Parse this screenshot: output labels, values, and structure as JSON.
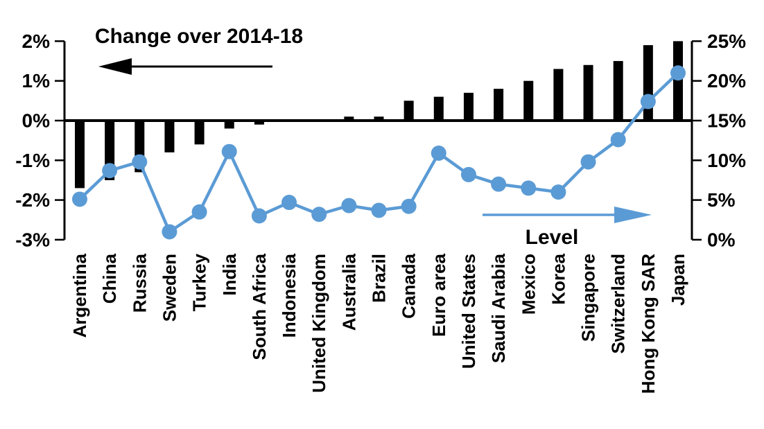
{
  "chart_data": {
    "type": "combo-bar-line",
    "categories": [
      "Argentina",
      "China",
      "Russia",
      "Sweden",
      "Turkey",
      "India",
      "South Africa",
      "Indonesia",
      "United Kingdom",
      "Australia",
      "Brazil",
      "Canada",
      "Euro area",
      "United States",
      "Saudi Arabia",
      "Mexico",
      "Korea",
      "Singapore",
      "Switzerland",
      "Hong Kong SAR",
      "Japan"
    ],
    "series": [
      {
        "name": "Change over 2014-18",
        "type": "bar",
        "axis": "left",
        "color": "#000000",
        "values": [
          -1.7,
          -1.5,
          -1.3,
          -0.8,
          -0.6,
          -0.2,
          -0.1,
          0,
          0,
          0.1,
          0.1,
          0.5,
          0.6,
          0.7,
          0.8,
          1.0,
          1.3,
          1.4,
          1.5,
          1.9,
          2.0
        ]
      },
      {
        "name": "Level",
        "type": "line",
        "axis": "right",
        "color": "#5B9BD5",
        "values": [
          5.1,
          8.7,
          9.8,
          1.0,
          3.5,
          11.1,
          3.0,
          4.7,
          3.2,
          4.3,
          3.7,
          4.2,
          10.9,
          8.2,
          7.0,
          6.5,
          6.0,
          9.8,
          12.6,
          17.4,
          21.0
        ]
      }
    ],
    "left_axis": {
      "min": -3,
      "max": 2,
      "step": 1,
      "tick_labels": [
        "2%",
        "1%",
        "0%",
        "-1%",
        "-2%",
        "-3%"
      ]
    },
    "right_axis": {
      "min": 0,
      "max": 25,
      "step": 5,
      "tick_labels": [
        "25%",
        "20%",
        "15%",
        "10%",
        "5%",
        "0%"
      ]
    },
    "annotations": {
      "bar_series_label": "Change over 2014-18",
      "line_series_label": "Level"
    },
    "layout_hints": {
      "grid": "off",
      "zero_line": "on",
      "bar_arrow_direction": "left",
      "line_arrow_direction": "right"
    }
  }
}
